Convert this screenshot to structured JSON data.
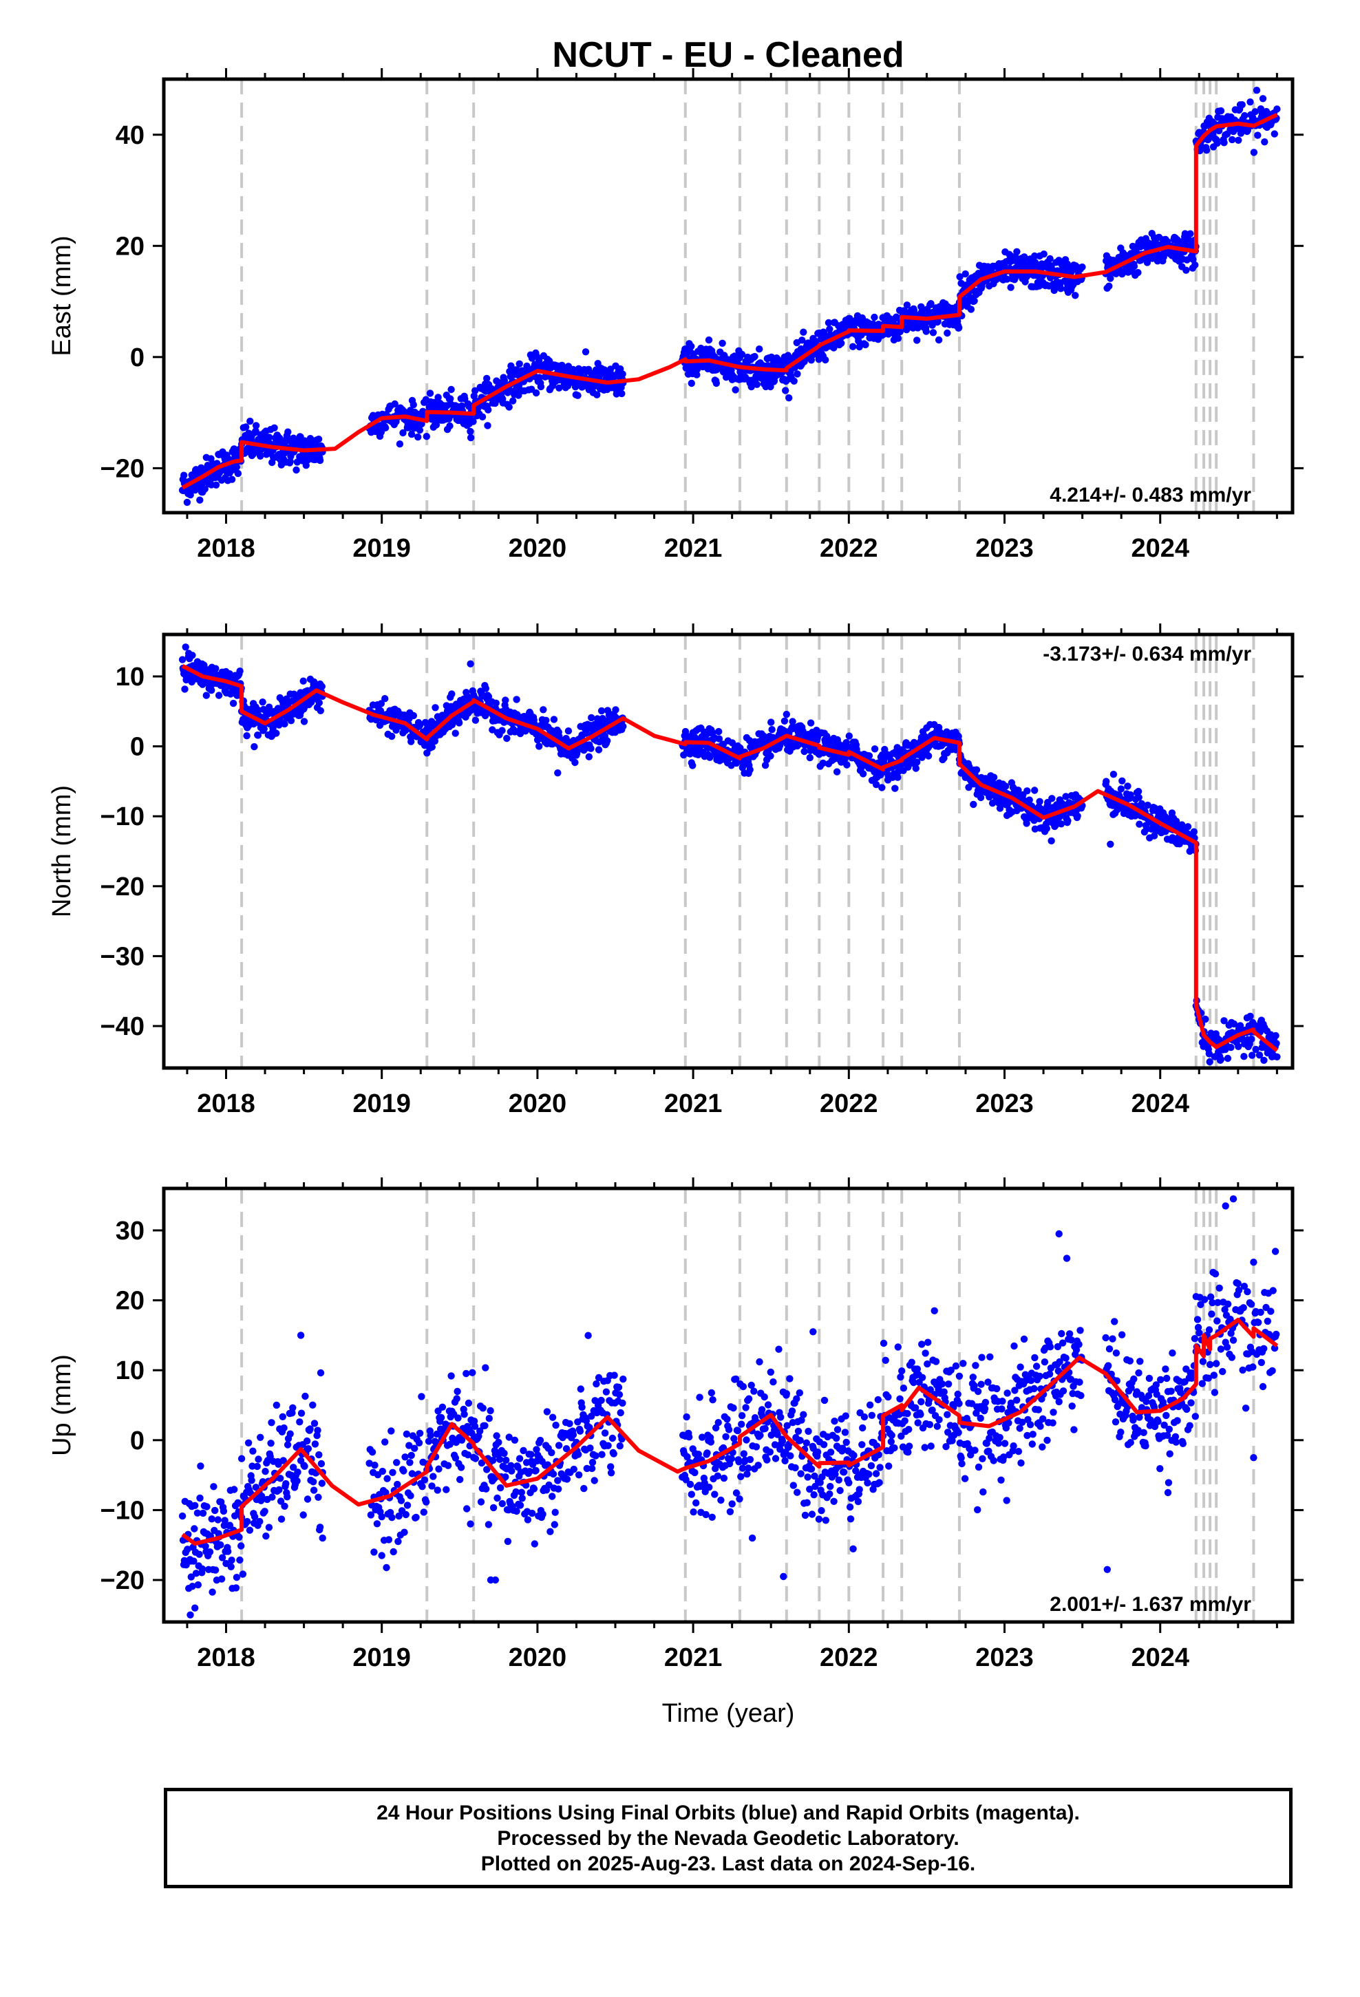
{
  "title": "NCUT  - EU - Cleaned",
  "xlabel": "Time (year)",
  "footer": {
    "line1": "24 Hour Positions Using Final Orbits (blue) and Rapid Orbits (magenta).",
    "line2": "Processed by the Nevada Geodetic Laboratory.",
    "line3": "Plotted on 2025-Aug-23. Last data on 2024-Sep-16."
  },
  "colors": {
    "points": "#0000ff",
    "model": "#ff0000",
    "breaks": "#c8c8c8",
    "frame": "#000000"
  },
  "chart_data": [
    {
      "type": "scatter",
      "panel": "east",
      "ylabel": "East (mm)",
      "rate_label": "4.214+/- 0.483 mm/yr",
      "xlim": [
        2017.6,
        2024.85
      ],
      "ylim": [
        -28,
        50
      ],
      "xticks": [
        2018,
        2019,
        2020,
        2021,
        2022,
        2023,
        2024
      ],
      "yticks": [
        -20,
        0,
        20,
        40
      ],
      "equipment_changes": [
        2018.1,
        2019.29,
        2019.59,
        2020.95,
        2021.3,
        2021.6,
        2021.81,
        2022.0,
        2022.22,
        2022.34,
        2022.71,
        2024.23,
        2024.28,
        2024.32,
        2024.36,
        2024.6
      ],
      "model_knots": [
        [
          2017.72,
          -23.5
        ],
        [
          2017.85,
          -21.5
        ],
        [
          2017.95,
          -19.8
        ],
        [
          2018.05,
          -18.8
        ],
        [
          2018.1,
          -18.6
        ],
        [
          2018.1,
          -15.3
        ],
        [
          2018.3,
          -16.2
        ],
        [
          2018.5,
          -16.8
        ],
        [
          2018.7,
          -16.5
        ],
        [
          2018.85,
          -13.5
        ],
        [
          2019.0,
          -11.0
        ],
        [
          2019.15,
          -10.7
        ],
        [
          2019.29,
          -11.5
        ],
        [
          2019.29,
          -9.9
        ],
        [
          2019.45,
          -10.0
        ],
        [
          2019.59,
          -10.2
        ],
        [
          2019.59,
          -8.7
        ],
        [
          2019.8,
          -5.3
        ],
        [
          2020.0,
          -2.5
        ],
        [
          2020.2,
          -3.5
        ],
        [
          2020.45,
          -4.6
        ],
        [
          2020.65,
          -4.0
        ],
        [
          2020.85,
          -1.8
        ],
        [
          2020.95,
          -0.4
        ],
        [
          2020.95,
          -0.8
        ],
        [
          2021.1,
          -0.6
        ],
        [
          2021.3,
          -1.8
        ],
        [
          2021.3,
          -1.8
        ],
        [
          2021.45,
          -2.2
        ],
        [
          2021.6,
          -2.4
        ],
        [
          2021.6,
          -2.0
        ],
        [
          2021.81,
          2.0
        ],
        [
          2021.81,
          2.1
        ],
        [
          2022.0,
          4.6
        ],
        [
          2022.0,
          4.8
        ],
        [
          2022.22,
          4.7
        ],
        [
          2022.22,
          5.6
        ],
        [
          2022.34,
          5.4
        ],
        [
          2022.34,
          7.2
        ],
        [
          2022.5,
          6.9
        ],
        [
          2022.71,
          7.6
        ],
        [
          2022.71,
          10.8
        ],
        [
          2022.85,
          14.0
        ],
        [
          2023.0,
          15.4
        ],
        [
          2023.2,
          15.4
        ],
        [
          2023.45,
          14.4
        ],
        [
          2023.65,
          15.3
        ],
        [
          2023.9,
          18.7
        ],
        [
          2024.05,
          19.8
        ],
        [
          2024.23,
          19.0
        ],
        [
          2024.23,
          38.0
        ],
        [
          2024.28,
          39.8
        ],
        [
          2024.32,
          40.8
        ],
        [
          2024.36,
          41.5
        ],
        [
          2024.5,
          42.0
        ],
        [
          2024.6,
          41.6
        ],
        [
          2024.6,
          41.6
        ],
        [
          2024.75,
          43.6
        ]
      ],
      "point_segments": [
        {
          "from": 2017.72,
          "to": 2018.1,
          "step": 0.003,
          "noise": 1.5,
          "amp": 0,
          "outliers": []
        },
        {
          "from": 2018.1,
          "to": 2018.62,
          "step": 0.003,
          "noise": 1.6,
          "amp": 0,
          "outliers": []
        },
        {
          "from": 2018.92,
          "to": 2019.29,
          "step": 0.004,
          "noise": 1.4,
          "amp": 0,
          "outliers": []
        },
        {
          "from": 2019.29,
          "to": 2019.59,
          "step": 0.003,
          "noise": 1.5,
          "amp": 0,
          "outliers": []
        },
        {
          "from": 2019.59,
          "to": 2020.55,
          "step": 0.003,
          "noise": 1.5,
          "amp": 0,
          "outliers": []
        },
        {
          "from": 2020.93,
          "to": 2021.6,
          "step": 0.003,
          "noise": 1.5,
          "amp": 0,
          "outliers": []
        },
        {
          "from": 2021.6,
          "to": 2022.71,
          "step": 0.003,
          "noise": 1.4,
          "amp": 0,
          "outliers": []
        },
        {
          "from": 2022.71,
          "to": 2023.5,
          "step": 0.003,
          "noise": 1.5,
          "amp": 0,
          "outliers": []
        },
        {
          "from": 2023.65,
          "to": 2024.23,
          "step": 0.003,
          "noise": 1.4,
          "amp": 0,
          "outliers": []
        },
        {
          "from": 2024.23,
          "to": 2024.75,
          "step": 0.004,
          "noise": 1.6,
          "amp": 0,
          "outliers": [
            [
              2024.62,
              48.0
            ],
            [
              2024.66,
              46.5
            ]
          ]
        }
      ]
    },
    {
      "type": "scatter",
      "panel": "north",
      "ylabel": "North (mm)",
      "rate_label": "-3.173+/- 0.634 mm/yr",
      "xlim": [
        2017.6,
        2024.85
      ],
      "ylim": [
        -46,
        16
      ],
      "xticks": [
        2018,
        2019,
        2020,
        2021,
        2022,
        2023,
        2024
      ],
      "yticks": [
        -40,
        -30,
        -20,
        -10,
        0,
        10
      ],
      "equipment_changes": [
        2018.1,
        2019.29,
        2019.59,
        2020.95,
        2021.3,
        2021.6,
        2021.81,
        2022.0,
        2022.22,
        2022.34,
        2022.71,
        2024.23,
        2024.28,
        2024.32,
        2024.36,
        2024.6
      ],
      "model_knots": [
        [
          2017.72,
          11.5
        ],
        [
          2017.85,
          10.0
        ],
        [
          2018.0,
          9.3
        ],
        [
          2018.1,
          8.6
        ],
        [
          2018.1,
          5.0
        ],
        [
          2018.25,
          3.3
        ],
        [
          2018.4,
          5.2
        ],
        [
          2018.58,
          8.0
        ],
        [
          2018.75,
          6.3
        ],
        [
          2018.95,
          4.5
        ],
        [
          2019.15,
          3.3
        ],
        [
          2019.29,
          1.0
        ],
        [
          2019.29,
          1.2
        ],
        [
          2019.45,
          4.4
        ],
        [
          2019.59,
          6.4
        ],
        [
          2019.59,
          6.6
        ],
        [
          2019.8,
          4.0
        ],
        [
          2020.0,
          2.5
        ],
        [
          2020.2,
          -0.3
        ],
        [
          2020.35,
          1.4
        ],
        [
          2020.55,
          4.0
        ],
        [
          2020.75,
          1.5
        ],
        [
          2020.95,
          0.3
        ],
        [
          2020.95,
          0.6
        ],
        [
          2021.1,
          0.5
        ],
        [
          2021.3,
          -1.7
        ],
        [
          2021.3,
          -1.5
        ],
        [
          2021.45,
          -0.3
        ],
        [
          2021.6,
          1.5
        ],
        [
          2021.6,
          1.5
        ],
        [
          2021.81,
          0.1
        ],
        [
          2021.81,
          -0.2
        ],
        [
          2022.0,
          -1.2
        ],
        [
          2022.0,
          -0.8
        ],
        [
          2022.22,
          -3.3
        ],
        [
          2022.22,
          -3.0
        ],
        [
          2022.34,
          -2.0
        ],
        [
          2022.34,
          -1.8
        ],
        [
          2022.55,
          1.2
        ],
        [
          2022.71,
          0.5
        ],
        [
          2022.71,
          -2.5
        ],
        [
          2022.85,
          -5.5
        ],
        [
          2023.05,
          -7.4
        ],
        [
          2023.25,
          -10.2
        ],
        [
          2023.45,
          -8.6
        ],
        [
          2023.6,
          -6.4
        ],
        [
          2023.8,
          -8.4
        ],
        [
          2024.0,
          -11.0
        ],
        [
          2024.23,
          -13.8
        ],
        [
          2024.23,
          -37.0
        ],
        [
          2024.28,
          -41.3
        ],
        [
          2024.32,
          -42.3
        ],
        [
          2024.36,
          -43.0
        ],
        [
          2024.5,
          -41.3
        ],
        [
          2024.6,
          -40.5
        ],
        [
          2024.6,
          -40.8
        ],
        [
          2024.75,
          -43.5
        ]
      ],
      "point_segments": [
        {
          "from": 2017.72,
          "to": 2018.1,
          "step": 0.003,
          "noise": 1.0,
          "amp": 0,
          "outliers": [
            [
              2017.74,
              14.2
            ],
            [
              2017.76,
              13.3
            ]
          ]
        },
        {
          "from": 2018.1,
          "to": 2018.62,
          "step": 0.003,
          "noise": 1.1,
          "amp": 0,
          "outliers": []
        },
        {
          "from": 2018.92,
          "to": 2019.29,
          "step": 0.004,
          "noise": 1.0,
          "amp": 0,
          "outliers": []
        },
        {
          "from": 2019.29,
          "to": 2019.59,
          "step": 0.003,
          "noise": 1.2,
          "amp": 0,
          "outliers": [
            [
              2019.57,
              11.8
            ]
          ]
        },
        {
          "from": 2019.59,
          "to": 2020.55,
          "step": 0.003,
          "noise": 1.1,
          "amp": 0,
          "outliers": [
            [
              2020.13,
              -3.8
            ]
          ]
        },
        {
          "from": 2020.93,
          "to": 2021.6,
          "step": 0.003,
          "noise": 1.1,
          "amp": 0,
          "outliers": []
        },
        {
          "from": 2021.6,
          "to": 2022.71,
          "step": 0.003,
          "noise": 1.1,
          "amp": 0,
          "outliers": [
            [
              2022.8,
              -8.3
            ]
          ]
        },
        {
          "from": 2022.71,
          "to": 2023.5,
          "step": 0.003,
          "noise": 1.1,
          "amp": 0,
          "outliers": []
        },
        {
          "from": 2023.65,
          "to": 2024.23,
          "step": 0.003,
          "noise": 1.1,
          "amp": 0,
          "outliers": [
            [
              2023.68,
              -14.0
            ],
            [
              2023.7,
              -4.0
            ]
          ]
        },
        {
          "from": 2024.23,
          "to": 2024.75,
          "step": 0.004,
          "noise": 1.2,
          "amp": 0,
          "outliers": [
            [
              2024.25,
              -39.0
            ]
          ]
        }
      ]
    },
    {
      "type": "scatter",
      "panel": "up",
      "ylabel": "Up (mm)",
      "rate_label": "2.001+/- 1.637 mm/yr",
      "xlim": [
        2017.6,
        2024.85
      ],
      "ylim": [
        -26,
        36
      ],
      "xticks": [
        2018,
        2019,
        2020,
        2021,
        2022,
        2023,
        2024
      ],
      "yticks": [
        -20,
        -10,
        0,
        10,
        20,
        30
      ],
      "equipment_changes": [
        2018.1,
        2019.29,
        2019.59,
        2020.95,
        2021.3,
        2021.6,
        2021.81,
        2022.0,
        2022.22,
        2022.34,
        2022.71,
        2024.23,
        2024.28,
        2024.32,
        2024.36,
        2024.6
      ],
      "model_knots": [
        [
          2017.72,
          -13.5
        ],
        [
          2017.8,
          -14.8
        ],
        [
          2017.95,
          -14.0
        ],
        [
          2018.1,
          -12.8
        ],
        [
          2018.1,
          -9.5
        ],
        [
          2018.3,
          -5.5
        ],
        [
          2018.48,
          -1.3
        ],
        [
          2018.68,
          -6.5
        ],
        [
          2018.85,
          -9.2
        ],
        [
          2019.05,
          -8.0
        ],
        [
          2019.29,
          -4.5
        ],
        [
          2019.29,
          -3.8
        ],
        [
          2019.45,
          2.3
        ],
        [
          2019.59,
          -0.5
        ],
        [
          2019.59,
          -0.8
        ],
        [
          2019.8,
          -6.5
        ],
        [
          2020.0,
          -5.5
        ],
        [
          2020.25,
          -1.0
        ],
        [
          2020.45,
          3.3
        ],
        [
          2020.65,
          -1.5
        ],
        [
          2020.9,
          -4.5
        ],
        [
          2020.95,
          -4.0
        ],
        [
          2020.95,
          -4.0
        ],
        [
          2021.1,
          -3.0
        ],
        [
          2021.3,
          -0.5
        ],
        [
          2021.3,
          0.5
        ],
        [
          2021.5,
          3.6
        ],
        [
          2021.6,
          0.5
        ],
        [
          2021.6,
          0.5
        ],
        [
          2021.81,
          -3.8
        ],
        [
          2021.81,
          -3.3
        ],
        [
          2022.0,
          -3.2
        ],
        [
          2022.0,
          -3.6
        ],
        [
          2022.22,
          -1.0
        ],
        [
          2022.22,
          3.5
        ],
        [
          2022.34,
          5.0
        ],
        [
          2022.34,
          4.3
        ],
        [
          2022.45,
          7.5
        ],
        [
          2022.71,
          3.5
        ],
        [
          2022.71,
          2.5
        ],
        [
          2022.9,
          2.0
        ],
        [
          2023.1,
          4.0
        ],
        [
          2023.3,
          8.0
        ],
        [
          2023.48,
          11.8
        ],
        [
          2023.65,
          9.5
        ],
        [
          2023.85,
          4.0
        ],
        [
          2024.0,
          4.2
        ],
        [
          2024.15,
          6.0
        ],
        [
          2024.23,
          8.0
        ],
        [
          2024.23,
          13.5
        ],
        [
          2024.28,
          12.0
        ],
        [
          2024.28,
          15.0
        ],
        [
          2024.32,
          13.0
        ],
        [
          2024.32,
          14.5
        ],
        [
          2024.36,
          15.0
        ],
        [
          2024.5,
          17.2
        ],
        [
          2024.6,
          14.8
        ],
        [
          2024.6,
          16.0
        ],
        [
          2024.75,
          13.5
        ]
      ],
      "point_segments": [
        {
          "from": 2017.72,
          "to": 2018.1,
          "step": 0.004,
          "noise": 4.0,
          "amp": 0,
          "outliers": [
            [
              2017.77,
              -25.0
            ],
            [
              2017.8,
              -24.0
            ]
          ]
        },
        {
          "from": 2018.1,
          "to": 2018.62,
          "step": 0.004,
          "noise": 4.0,
          "amp": 0,
          "outliers": [
            [
              2018.48,
              15.0
            ],
            [
              2018.62,
              -14.0
            ]
          ]
        },
        {
          "from": 2018.92,
          "to": 2019.29,
          "step": 0.005,
          "noise": 4.0,
          "amp": 0,
          "outliers": [
            [
              2018.95,
              -16.0
            ],
            [
              2019.0,
              -16.5
            ]
          ]
        },
        {
          "from": 2019.29,
          "to": 2019.59,
          "step": 0.004,
          "noise": 4.0,
          "amp": 0,
          "outliers": [
            [
              2019.7,
              -20.0
            ],
            [
              2019.73,
              -20.0
            ]
          ]
        },
        {
          "from": 2019.59,
          "to": 2020.55,
          "step": 0.004,
          "noise": 4.0,
          "amp": 0,
          "outliers": []
        },
        {
          "from": 2020.93,
          "to": 2021.6,
          "step": 0.004,
          "noise": 4.0,
          "amp": 0,
          "outliers": [
            [
              2021.38,
              -14.0
            ],
            [
              2021.58,
              -19.5
            ],
            [
              2021.55,
              13.0
            ]
          ]
        },
        {
          "from": 2021.6,
          "to": 2022.71,
          "step": 0.004,
          "noise": 4.0,
          "amp": 0,
          "outliers": [
            [
              2021.77,
              15.5
            ],
            [
              2022.55,
              18.5
            ]
          ]
        },
        {
          "from": 2022.71,
          "to": 2023.5,
          "step": 0.004,
          "noise": 4.0,
          "amp": 0,
          "outliers": [
            [
              2023.35,
              29.5
            ],
            [
              2023.4,
              26.0
            ]
          ]
        },
        {
          "from": 2023.65,
          "to": 2024.23,
          "step": 0.004,
          "noise": 3.5,
          "amp": 0,
          "outliers": [
            [
              2023.66,
              -18.5
            ],
            [
              2024.05,
              -7.5
            ]
          ]
        },
        {
          "from": 2024.23,
          "to": 2024.75,
          "step": 0.005,
          "noise": 4.0,
          "amp": 0,
          "outliers": [
            [
              2024.47,
              34.5
            ],
            [
              2024.42,
              33.5
            ],
            [
              2024.6,
              -2.5
            ],
            [
              2024.74,
              27.0
            ]
          ]
        }
      ]
    }
  ]
}
